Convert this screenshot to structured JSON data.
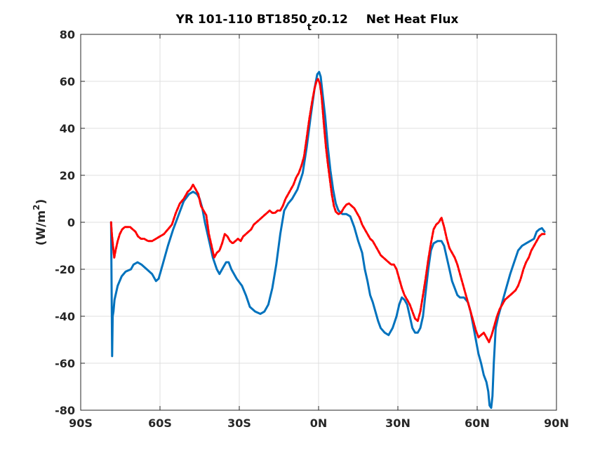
{
  "chart_data": {
    "type": "line",
    "title": {
      "part1": "YR 101-110 BT1850",
      "subscript": "t",
      "part2": "z0.12",
      "part3": "Net Heat Flux"
    },
    "xlabel": "",
    "ylabel": {
      "prefix": "(W/m",
      "superscript": "2",
      "suffix": ")"
    },
    "xlim": [
      -90,
      90
    ],
    "ylim": [
      -80,
      80
    ],
    "grid": true,
    "x_ticks": [
      {
        "value": -90,
        "label": "90S"
      },
      {
        "value": -60,
        "label": "60S"
      },
      {
        "value": -30,
        "label": "30S"
      },
      {
        "value": 0,
        "label": "0N"
      },
      {
        "value": 30,
        "label": "30N"
      },
      {
        "value": 60,
        "label": "60N"
      },
      {
        "value": 90,
        "label": "90N"
      }
    ],
    "y_ticks": [
      {
        "value": -80,
        "label": "-80"
      },
      {
        "value": -60,
        "label": "-60"
      },
      {
        "value": -40,
        "label": "-40"
      },
      {
        "value": -20,
        "label": "-20"
      },
      {
        "value": 0,
        "label": "0"
      },
      {
        "value": 20,
        "label": "20"
      },
      {
        "value": 40,
        "label": "40"
      },
      {
        "value": 60,
        "label": "60"
      },
      {
        "value": 80,
        "label": "80"
      }
    ],
    "series": [
      {
        "color": "#0072bd",
        "style": "solid",
        "points": [
          [
            -78.5,
            0
          ],
          [
            -78.3,
            -30
          ],
          [
            -78.1,
            -57
          ],
          [
            -77.9,
            -40
          ],
          [
            -77.6,
            -38
          ],
          [
            -77.2,
            -33
          ],
          [
            -76,
            -27
          ],
          [
            -74.5,
            -23
          ],
          [
            -73,
            -21
          ],
          [
            -71,
            -20
          ],
          [
            -70,
            -18
          ],
          [
            -68.5,
            -17
          ],
          [
            -67,
            -18
          ],
          [
            -65,
            -20
          ],
          [
            -63,
            -22
          ],
          [
            -61.5,
            -25
          ],
          [
            -60.5,
            -24
          ],
          [
            -59,
            -18
          ],
          [
            -57,
            -10
          ],
          [
            -55,
            -3
          ],
          [
            -53,
            3
          ],
          [
            -51,
            9
          ],
          [
            -49,
            12
          ],
          [
            -47.5,
            13
          ],
          [
            -46,
            12
          ],
          [
            -45,
            10
          ],
          [
            -44,
            6
          ],
          [
            -43,
            0
          ],
          [
            -42,
            -5
          ],
          [
            -41,
            -10
          ],
          [
            -40,
            -15
          ],
          [
            -38.5,
            -20
          ],
          [
            -37.5,
            -22
          ],
          [
            -36.5,
            -20
          ],
          [
            -35,
            -17
          ],
          [
            -34,
            -17
          ],
          [
            -33,
            -20
          ],
          [
            -31,
            -24
          ],
          [
            -29,
            -27
          ],
          [
            -27.5,
            -31
          ],
          [
            -26,
            -36
          ],
          [
            -24,
            -38
          ],
          [
            -22,
            -39
          ],
          [
            -20.5,
            -38
          ],
          [
            -19,
            -35
          ],
          [
            -17.5,
            -28
          ],
          [
            -16,
            -18
          ],
          [
            -14.5,
            -5
          ],
          [
            -13,
            5
          ],
          [
            -11.5,
            8
          ],
          [
            -10,
            10
          ],
          [
            -8,
            14
          ],
          [
            -6,
            21
          ],
          [
            -4.5,
            32
          ],
          [
            -3,
            45
          ],
          [
            -1.5,
            57
          ],
          [
            -0.5,
            63
          ],
          [
            0.2,
            64
          ],
          [
            0.8,
            62
          ],
          [
            1.5,
            55
          ],
          [
            2.5,
            45
          ],
          [
            3.5,
            32
          ],
          [
            4.5,
            22
          ],
          [
            5.5,
            14
          ],
          [
            6.5,
            8
          ],
          [
            7.5,
            5
          ],
          [
            9,
            3.5
          ],
          [
            10.5,
            3.5
          ],
          [
            12,
            2.5
          ],
          [
            13.5,
            -2
          ],
          [
            15,
            -8
          ],
          [
            16.5,
            -13
          ],
          [
            17.5,
            -20
          ],
          [
            18.5,
            -25
          ],
          [
            19.5,
            -31
          ],
          [
            20.5,
            -34
          ],
          [
            21.5,
            -38
          ],
          [
            22.5,
            -42
          ],
          [
            23.5,
            -45
          ],
          [
            25,
            -47
          ],
          [
            26.5,
            -48
          ],
          [
            28,
            -45
          ],
          [
            29.5,
            -40
          ],
          [
            30.5,
            -35
          ],
          [
            31.5,
            -32
          ],
          [
            32.5,
            -33
          ],
          [
            33.5,
            -35
          ],
          [
            34.5,
            -40
          ],
          [
            35.5,
            -45
          ],
          [
            36.5,
            -47
          ],
          [
            37.5,
            -47
          ],
          [
            38.5,
            -45
          ],
          [
            39.5,
            -40
          ],
          [
            40.5,
            -30
          ],
          [
            41.5,
            -20
          ],
          [
            42.5,
            -12
          ],
          [
            43.5,
            -9
          ],
          [
            45,
            -8
          ],
          [
            46.5,
            -8
          ],
          [
            47.5,
            -10
          ],
          [
            48.5,
            -15
          ],
          [
            49.5,
            -20
          ],
          [
            50.5,
            -25
          ],
          [
            51.5,
            -28
          ],
          [
            52.5,
            -31
          ],
          [
            53.5,
            -32
          ],
          [
            55,
            -32
          ],
          [
            56.5,
            -34
          ],
          [
            57.5,
            -38
          ],
          [
            58.5,
            -44
          ],
          [
            59.5,
            -50
          ],
          [
            60.5,
            -56
          ],
          [
            61.5,
            -60
          ],
          [
            62.5,
            -65
          ],
          [
            63.5,
            -68
          ],
          [
            64.2,
            -72
          ],
          [
            64.7,
            -78
          ],
          [
            65.3,
            -79
          ],
          [
            65.8,
            -74
          ],
          [
            66.3,
            -60
          ],
          [
            67,
            -45
          ],
          [
            68,
            -40
          ],
          [
            69.5,
            -34
          ],
          [
            71,
            -28
          ],
          [
            72.5,
            -22
          ],
          [
            74,
            -17
          ],
          [
            75.5,
            -12
          ],
          [
            77,
            -10
          ],
          [
            78.5,
            -9
          ],
          [
            80,
            -8
          ],
          [
            81.5,
            -7
          ],
          [
            82.5,
            -4
          ],
          [
            83.5,
            -3
          ],
          [
            84.5,
            -2.5
          ],
          [
            85.5,
            -4
          ]
        ]
      },
      {
        "color": "#ff0000",
        "style": "dashed",
        "points": [
          [
            -78.5,
            0
          ],
          [
            -78.2,
            -5
          ],
          [
            -77.8,
            -10
          ],
          [
            -77.3,
            -15
          ],
          [
            -76.8,
            -12
          ],
          [
            -76,
            -8
          ],
          [
            -75.2,
            -5
          ],
          [
            -74.3,
            -3
          ],
          [
            -73.3,
            -2
          ],
          [
            -72.3,
            -2
          ],
          [
            -71.3,
            -2
          ],
          [
            -70.3,
            -3
          ],
          [
            -69.3,
            -4
          ],
          [
            -68.3,
            -6
          ],
          [
            -67.2,
            -7
          ],
          [
            -66,
            -7
          ],
          [
            -64.5,
            -8
          ],
          [
            -63,
            -8
          ],
          [
            -61.5,
            -7
          ],
          [
            -60,
            -6
          ],
          [
            -58.5,
            -5
          ],
          [
            -57,
            -3
          ],
          [
            -55.5,
            -1
          ],
          [
            -54,
            4
          ],
          [
            -52.5,
            8
          ],
          [
            -51,
            10
          ],
          [
            -49.5,
            13
          ],
          [
            -48.5,
            14
          ],
          [
            -47.5,
            16
          ],
          [
            -46.5,
            14
          ],
          [
            -45.5,
            12
          ],
          [
            -44.5,
            7
          ],
          [
            -43.5,
            5
          ],
          [
            -42.5,
            3
          ],
          [
            -41.5,
            -5
          ],
          [
            -40.5,
            -10
          ],
          [
            -39.5,
            -15
          ],
          [
            -38.5,
            -13
          ],
          [
            -37.5,
            -12
          ],
          [
            -36.5,
            -9
          ],
          [
            -35.5,
            -5
          ],
          [
            -34.5,
            -6
          ],
          [
            -33.5,
            -8
          ],
          [
            -32.5,
            -9
          ],
          [
            -31.5,
            -8
          ],
          [
            -30.5,
            -7
          ],
          [
            -29.5,
            -8
          ],
          [
            -28.5,
            -6
          ],
          [
            -27.5,
            -5
          ],
          [
            -26.5,
            -4
          ],
          [
            -25.5,
            -3
          ],
          [
            -24.5,
            -1
          ],
          [
            -23.5,
            0
          ],
          [
            -22.5,
            1
          ],
          [
            -21.5,
            2
          ],
          [
            -20.5,
            3
          ],
          [
            -19.5,
            4
          ],
          [
            -18.5,
            5
          ],
          [
            -17.5,
            4
          ],
          [
            -16.5,
            4
          ],
          [
            -15.5,
            5
          ],
          [
            -14.5,
            5
          ],
          [
            -13.5,
            7
          ],
          [
            -12.5,
            10
          ],
          [
            -11.5,
            12
          ],
          [
            -10.5,
            14
          ],
          [
            -9.5,
            16
          ],
          [
            -8.5,
            19
          ],
          [
            -7.5,
            21
          ],
          [
            -6.5,
            24
          ],
          [
            -5.5,
            28
          ],
          [
            -4.5,
            36
          ],
          [
            -3.5,
            44
          ],
          [
            -2.5,
            51
          ],
          [
            -1.5,
            57
          ],
          [
            -0.8,
            60
          ],
          [
            -0.2,
            61
          ],
          [
            0.5,
            59
          ],
          [
            1.2,
            53
          ],
          [
            2,
            42
          ],
          [
            2.8,
            32
          ],
          [
            3.5,
            25
          ],
          [
            4.3,
            18
          ],
          [
            5,
            12
          ],
          [
            5.8,
            7
          ],
          [
            6.5,
            4.5
          ],
          [
            7.5,
            3.5
          ],
          [
            8.5,
            4
          ],
          [
            9.5,
            6
          ],
          [
            10.5,
            7.5
          ],
          [
            11.5,
            8
          ],
          [
            12.5,
            7
          ],
          [
            13.5,
            6
          ],
          [
            14.5,
            4
          ],
          [
            15.5,
            2
          ],
          [
            16.5,
            -1
          ],
          [
            17.5,
            -3
          ],
          [
            18.5,
            -5
          ],
          [
            19.5,
            -7
          ],
          [
            20.5,
            -8
          ],
          [
            21.5,
            -10
          ],
          [
            22.5,
            -12
          ],
          [
            23.5,
            -14
          ],
          [
            24.5,
            -15
          ],
          [
            25.5,
            -16
          ],
          [
            26.5,
            -17
          ],
          [
            27.5,
            -18
          ],
          [
            28.5,
            -18
          ],
          [
            29.5,
            -20
          ],
          [
            30.5,
            -24
          ],
          [
            31.5,
            -28
          ],
          [
            32.5,
            -31
          ],
          [
            33.5,
            -33
          ],
          [
            34.5,
            -35
          ],
          [
            35.5,
            -38
          ],
          [
            36.5,
            -41
          ],
          [
            37.5,
            -42
          ],
          [
            38.5,
            -38
          ],
          [
            39.5,
            -31
          ],
          [
            40.5,
            -24
          ],
          [
            41.5,
            -16
          ],
          [
            42.5,
            -9
          ],
          [
            43.5,
            -3
          ],
          [
            44.5,
            -1
          ],
          [
            45.5,
            0
          ],
          [
            46.5,
            2
          ],
          [
            47.5,
            -2
          ],
          [
            48.5,
            -7
          ],
          [
            49.5,
            -11
          ],
          [
            50.5,
            -13
          ],
          [
            51.5,
            -15
          ],
          [
            52.5,
            -18
          ],
          [
            53.5,
            -22
          ],
          [
            54.5,
            -26
          ],
          [
            55.5,
            -30
          ],
          [
            56.5,
            -34
          ],
          [
            57.5,
            -38
          ],
          [
            58.5,
            -42
          ],
          [
            59.5,
            -46
          ],
          [
            60.5,
            -49
          ],
          [
            61.5,
            -48
          ],
          [
            62.5,
            -47
          ],
          [
            63.5,
            -49
          ],
          [
            64.5,
            -51
          ],
          [
            65.5,
            -48
          ],
          [
            66.5,
            -44
          ],
          [
            67.5,
            -40
          ],
          [
            68.5,
            -37
          ],
          [
            69.5,
            -35
          ],
          [
            70.5,
            -33
          ],
          [
            71.5,
            -32
          ],
          [
            72.5,
            -31
          ],
          [
            73.5,
            -30
          ],
          [
            74.5,
            -29
          ],
          [
            75.5,
            -27
          ],
          [
            76.5,
            -24
          ],
          [
            77.5,
            -20
          ],
          [
            78.5,
            -17
          ],
          [
            79.5,
            -15
          ],
          [
            80.5,
            -12
          ],
          [
            81.5,
            -10
          ],
          [
            82.5,
            -8
          ],
          [
            83.5,
            -6
          ],
          [
            84.5,
            -5
          ],
          [
            85.5,
            -5
          ]
        ]
      }
    ]
  }
}
